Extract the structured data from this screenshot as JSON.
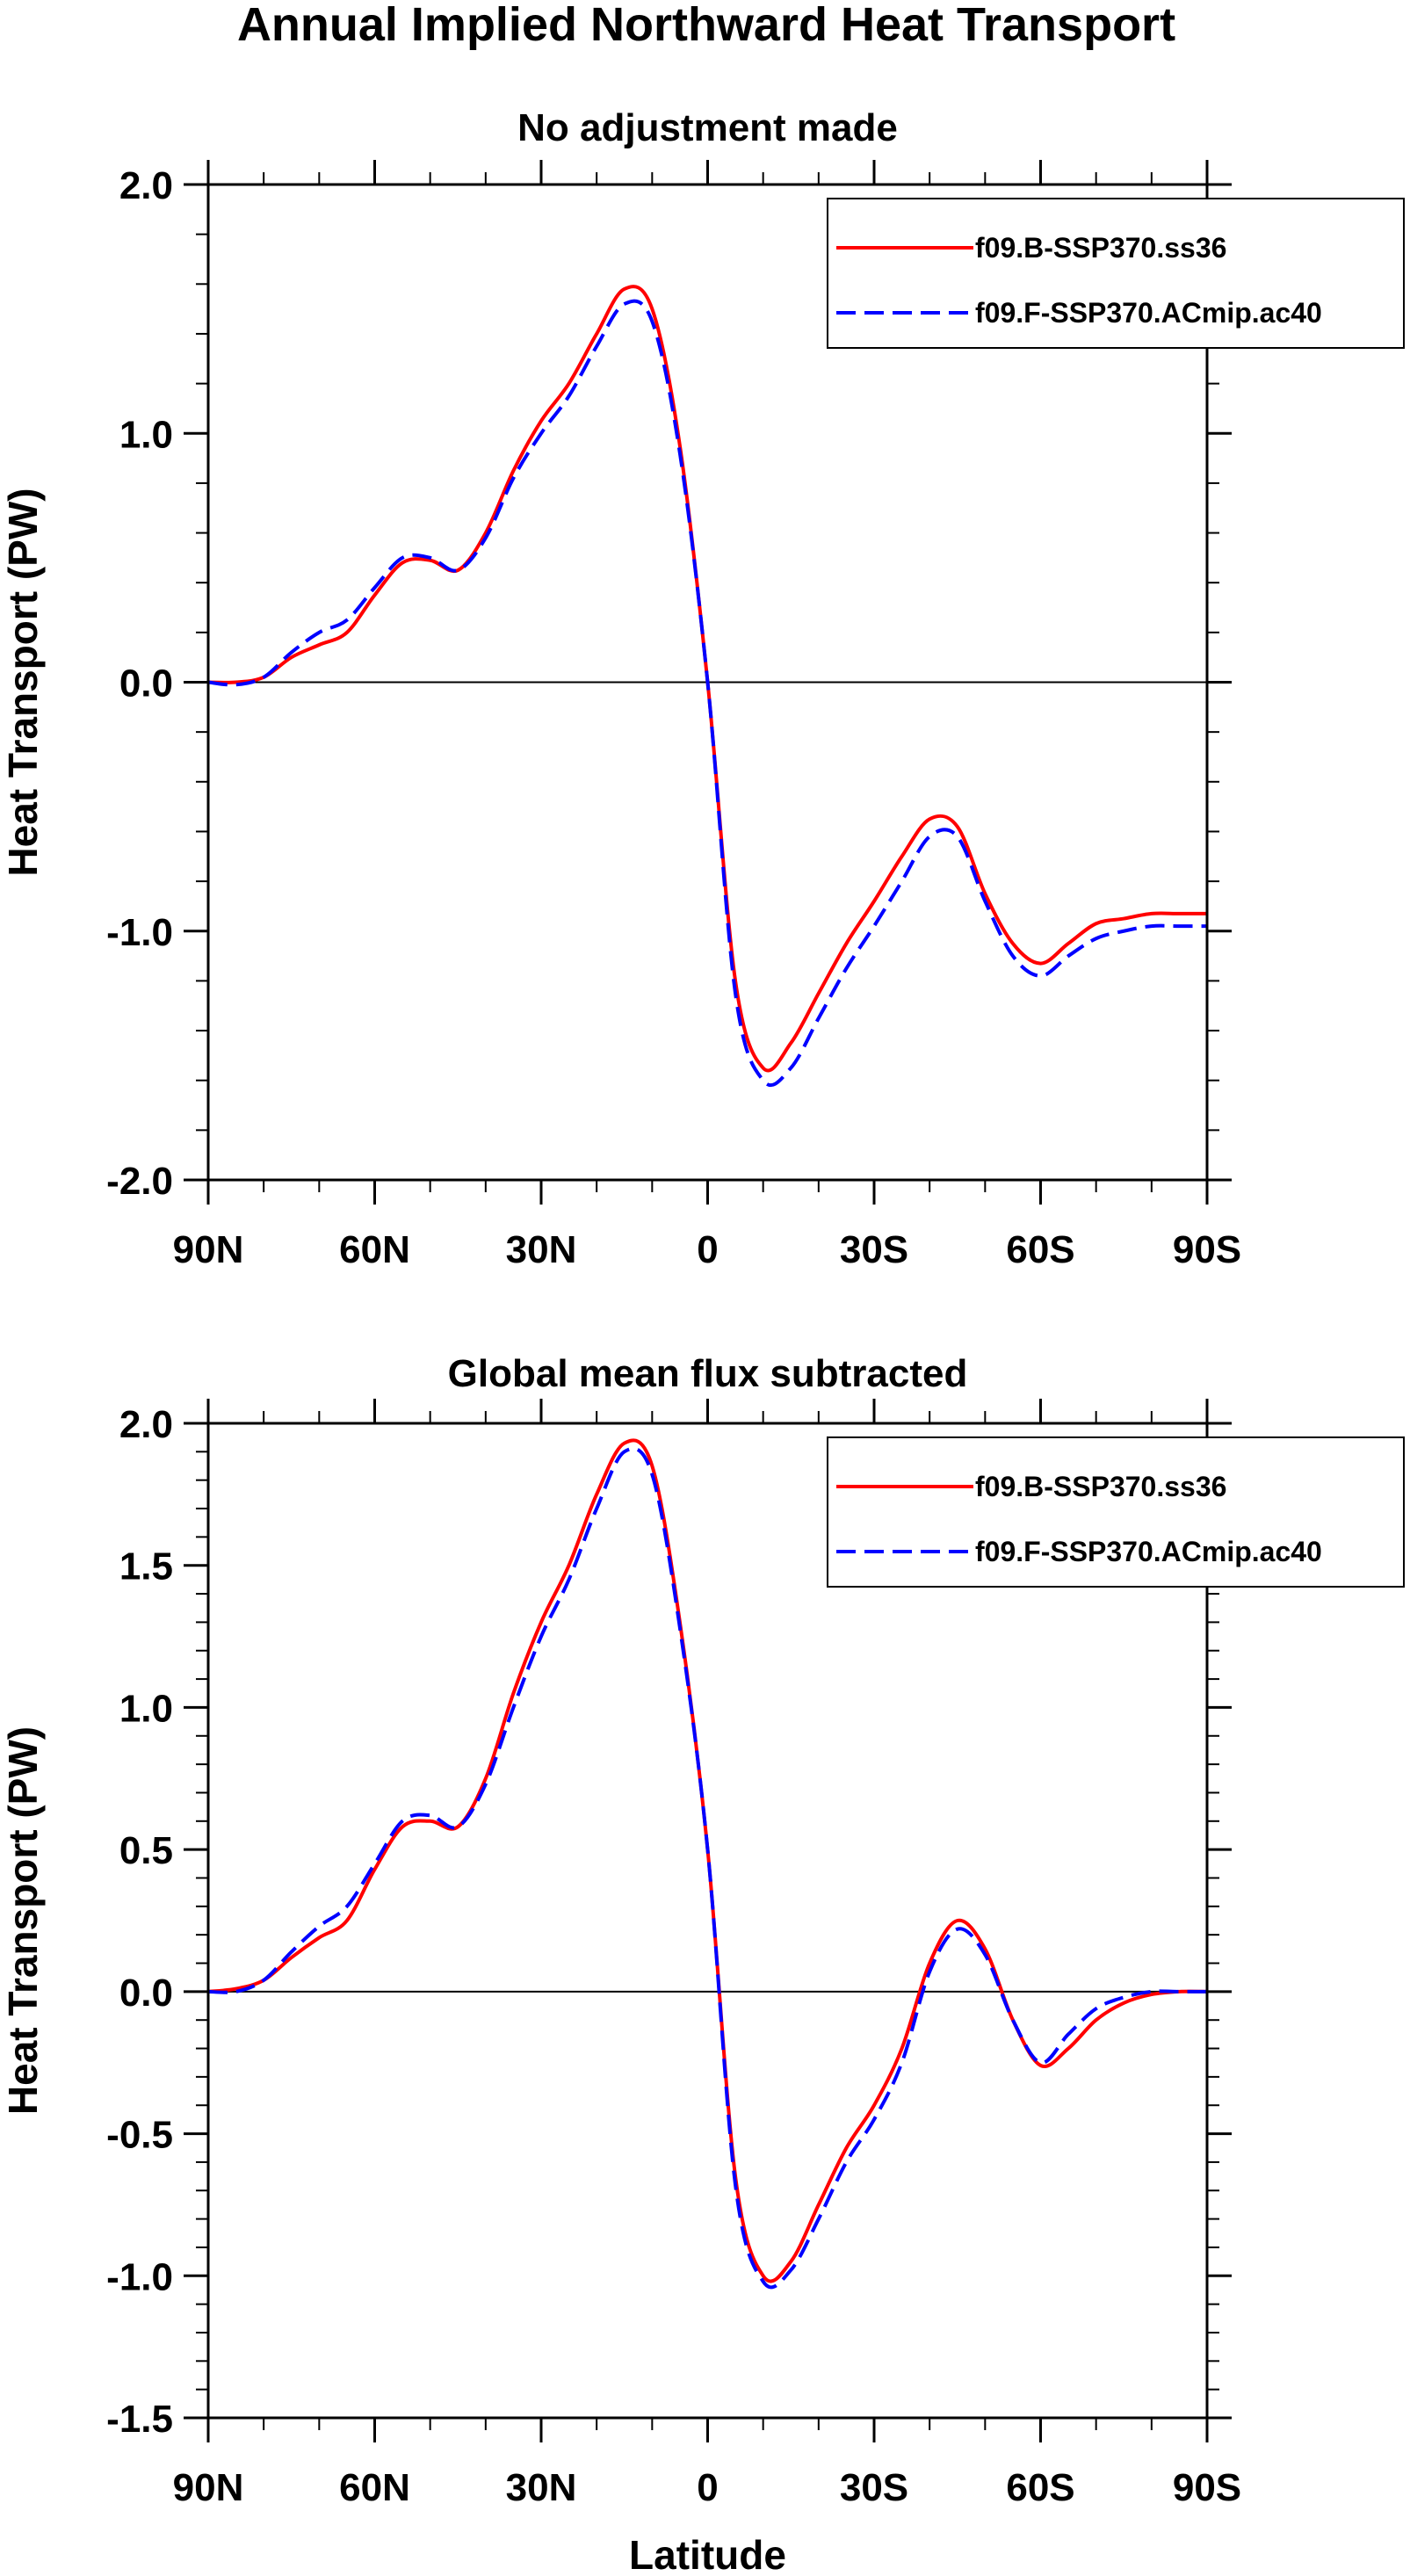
{
  "figure": {
    "title": "Annual Implied Northward Heat Transport"
  },
  "colors": {
    "series_b": "#ff0000",
    "series_f": "#0000ff",
    "axis": "#000000",
    "zero_line": "#000000"
  },
  "chart_data": [
    {
      "type": "line",
      "title": "No adjustment made",
      "xlabel": "",
      "ylabel": "Heat Transport (PW)",
      "xlim": [
        90,
        -90
      ],
      "ylim": [
        -2.0,
        2.0
      ],
      "x_ticks": [
        90,
        60,
        30,
        0,
        -30,
        -60,
        -90
      ],
      "x_tick_labels": [
        "90N",
        "60N",
        "30N",
        "0",
        "30S",
        "60S",
        "90S"
      ],
      "y_ticks": [
        2.0,
        1.0,
        0.0,
        -1.0,
        -2.0
      ],
      "y_tick_labels": [
        "2.0",
        "1.0",
        "0.0",
        "-1.0",
        "-2.0"
      ],
      "grid": false,
      "zero_line": true,
      "legend_position": "top-right",
      "series": [
        {
          "name": "f09.B-SSP370.ss36",
          "color": "#ff0000",
          "dash": "solid",
          "x": [
            90,
            85,
            80,
            75,
            70,
            65,
            60,
            55,
            50,
            45,
            40,
            35,
            30,
            25,
            20,
            15,
            10,
            5,
            0,
            -5,
            -10,
            -15,
            -20,
            -25,
            -30,
            -35,
            -40,
            -45,
            -50,
            -55,
            -60,
            -65,
            -70,
            -75,
            -80,
            -85,
            -90
          ],
          "y": [
            0.0,
            0.0,
            0.02,
            0.1,
            0.15,
            0.2,
            0.35,
            0.48,
            0.49,
            0.45,
            0.6,
            0.85,
            1.05,
            1.2,
            1.4,
            1.58,
            1.5,
            0.95,
            0.0,
            -1.2,
            -1.55,
            -1.45,
            -1.25,
            -1.05,
            -0.88,
            -0.7,
            -0.55,
            -0.58,
            -0.85,
            -1.05,
            -1.13,
            -1.05,
            -0.97,
            -0.95,
            -0.93,
            -0.93,
            -0.93
          ]
        },
        {
          "name": "f09.F-SSP370.ACmip.ac40",
          "color": "#0000ff",
          "dash": "dashed",
          "x": [
            90,
            85,
            80,
            75,
            70,
            65,
            60,
            55,
            50,
            45,
            40,
            35,
            30,
            25,
            20,
            15,
            10,
            5,
            0,
            -5,
            -10,
            -15,
            -20,
            -25,
            -30,
            -35,
            -40,
            -45,
            -50,
            -55,
            -60,
            -65,
            -70,
            -75,
            -80,
            -85,
            -90
          ],
          "y": [
            0.0,
            -0.01,
            0.02,
            0.12,
            0.2,
            0.25,
            0.38,
            0.5,
            0.5,
            0.45,
            0.58,
            0.82,
            1.0,
            1.15,
            1.35,
            1.52,
            1.45,
            0.92,
            0.0,
            -1.25,
            -1.6,
            -1.55,
            -1.35,
            -1.15,
            -0.98,
            -0.8,
            -0.62,
            -0.62,
            -0.88,
            -1.1,
            -1.18,
            -1.1,
            -1.03,
            -1.0,
            -0.98,
            -0.98,
            -0.98
          ]
        }
      ]
    },
    {
      "type": "line",
      "title": "Global mean flux subtracted",
      "xlabel": "Latitude",
      "ylabel": "Heat Transport (PW)",
      "xlim": [
        90,
        -90
      ],
      "ylim": [
        -1.5,
        2.0
      ],
      "x_ticks": [
        90,
        60,
        30,
        0,
        -30,
        -60,
        -90
      ],
      "x_tick_labels": [
        "90N",
        "60N",
        "30N",
        "0",
        "30S",
        "60S",
        "90S"
      ],
      "y_ticks": [
        2.0,
        1.5,
        1.0,
        0.5,
        0.0,
        -0.5,
        -1.0,
        -1.5
      ],
      "y_tick_labels": [
        "2.0",
        "1.5",
        "1.0",
        "0.5",
        "0.0",
        "-0.5",
        "-1.0",
        "-1.5"
      ],
      "grid": false,
      "zero_line": true,
      "legend_position": "top-right",
      "series": [
        {
          "name": "f09.B-SSP370.ss36",
          "color": "#ff0000",
          "dash": "solid",
          "x": [
            90,
            85,
            80,
            75,
            70,
            65,
            60,
            55,
            50,
            45,
            40,
            35,
            30,
            25,
            20,
            15,
            10,
            5,
            0,
            -5,
            -10,
            -15,
            -20,
            -25,
            -30,
            -35,
            -40,
            -45,
            -50,
            -55,
            -60,
            -65,
            -70,
            -75,
            -80,
            -85,
            -90
          ],
          "y": [
            0.0,
            0.01,
            0.04,
            0.12,
            0.19,
            0.25,
            0.43,
            0.58,
            0.6,
            0.58,
            0.75,
            1.05,
            1.3,
            1.5,
            1.75,
            1.93,
            1.85,
            1.3,
            0.5,
            -0.65,
            -1.0,
            -0.95,
            -0.75,
            -0.55,
            -0.4,
            -0.2,
            0.1,
            0.25,
            0.15,
            -0.1,
            -0.26,
            -0.2,
            -0.1,
            -0.04,
            -0.01,
            0.0,
            0.0
          ]
        },
        {
          "name": "f09.F-SSP370.ACmip.ac40",
          "color": "#0000ff",
          "dash": "dashed",
          "x": [
            90,
            85,
            80,
            75,
            70,
            65,
            60,
            55,
            50,
            45,
            40,
            35,
            30,
            25,
            20,
            15,
            10,
            5,
            0,
            -5,
            -10,
            -15,
            -20,
            -25,
            -30,
            -35,
            -40,
            -45,
            -50,
            -55,
            -60,
            -65,
            -70,
            -75,
            -80,
            -85,
            -90
          ],
          "y": [
            0.0,
            0.0,
            0.04,
            0.14,
            0.23,
            0.3,
            0.45,
            0.6,
            0.62,
            0.58,
            0.73,
            1.0,
            1.25,
            1.45,
            1.7,
            1.9,
            1.82,
            1.28,
            0.5,
            -0.68,
            -1.02,
            -0.98,
            -0.8,
            -0.6,
            -0.45,
            -0.25,
            0.07,
            0.22,
            0.13,
            -0.1,
            -0.25,
            -0.15,
            -0.06,
            -0.02,
            0.0,
            0.0,
            0.0
          ]
        }
      ]
    }
  ]
}
